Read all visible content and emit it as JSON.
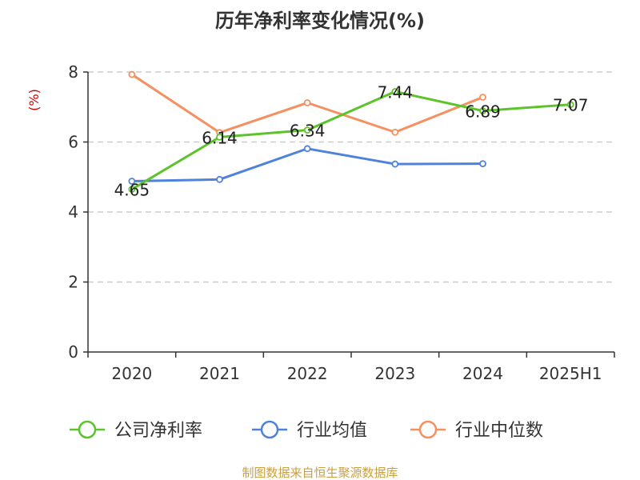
{
  "chart_data": {
    "type": "line",
    "title": "历年净利率变化情况(%)",
    "ylabel": "(%)",
    "xlabel": "",
    "categories": [
      "2020",
      "2021",
      "2022",
      "2023",
      "2024",
      "2025H1"
    ],
    "ylim": [
      0,
      8
    ],
    "yticks": [
      0,
      2,
      4,
      6,
      8
    ],
    "grid": true,
    "legend_position": "bottom",
    "series": [
      {
        "name": "公司净利率",
        "color": "#5cc32a",
        "show_labels": true,
        "values": [
          4.65,
          6.14,
          6.34,
          7.44,
          6.89,
          7.07
        ],
        "labels": [
          "4.65",
          "6.14",
          "6.34",
          "7.44",
          "6.89",
          "7.07"
        ]
      },
      {
        "name": "行业均值",
        "color": "#4f82dd",
        "show_labels": false,
        "values": [
          4.88,
          4.93,
          5.81,
          5.37,
          5.38,
          null
        ]
      },
      {
        "name": "行业中位数",
        "color": "#f59060",
        "show_labels": false,
        "values": [
          7.93,
          6.27,
          7.12,
          6.28,
          7.28,
          null
        ]
      }
    ]
  },
  "source": "制图数据来自恒生聚源数据库",
  "colors": {
    "unit": "#cc0000",
    "source": "#c8a040",
    "axis": "#333333",
    "grid": "#cccccc"
  }
}
